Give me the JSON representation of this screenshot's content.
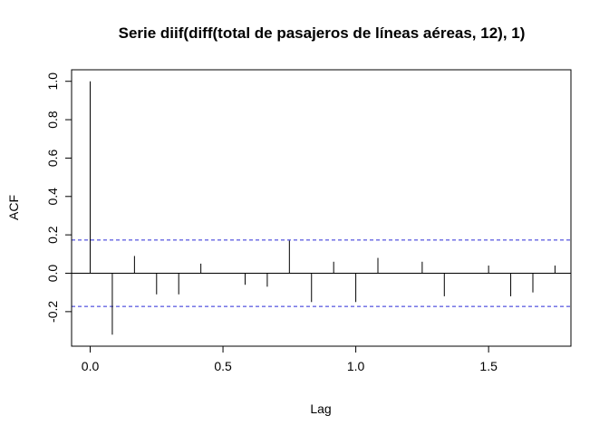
{
  "chart_data": {
    "type": "bar",
    "title": "Serie diif(diff(total de pasajeros de líneas aéreas, 12), 1)",
    "xlabel": "Lag",
    "ylabel": "ACF",
    "xlim": [
      -0.07,
      1.81
    ],
    "ylim": [
      -0.38,
      1.06
    ],
    "xticks": [
      0.0,
      0.5,
      1.0,
      1.5
    ],
    "xtick_labels": [
      "0.0",
      "0.5",
      "1.0",
      "1.5"
    ],
    "yticks": [
      -0.2,
      0.0,
      0.2,
      0.4,
      0.6,
      0.8,
      1.0
    ],
    "ytick_labels": [
      "-0.2",
      "0.0",
      "0.2",
      "0.4",
      "0.6",
      "0.8",
      "1.0"
    ],
    "confidence_bound": 0.173,
    "grid": false,
    "lags": [
      0.0,
      0.0833,
      0.1667,
      0.25,
      0.3333,
      0.4167,
      0.5,
      0.5833,
      0.6667,
      0.75,
      0.8333,
      0.9167,
      1.0,
      1.0833,
      1.1667,
      1.25,
      1.3333,
      1.4167,
      1.5,
      1.5833,
      1.6667,
      1.75
    ],
    "values": [
      1.0,
      -0.32,
      0.09,
      -0.11,
      -0.11,
      0.05,
      0.0,
      -0.06,
      -0.07,
      0.17,
      -0.15,
      0.06,
      -0.15,
      0.08,
      0.0,
      0.06,
      -0.12,
      0.0,
      0.04,
      -0.12,
      -0.1,
      0.04
    ]
  }
}
